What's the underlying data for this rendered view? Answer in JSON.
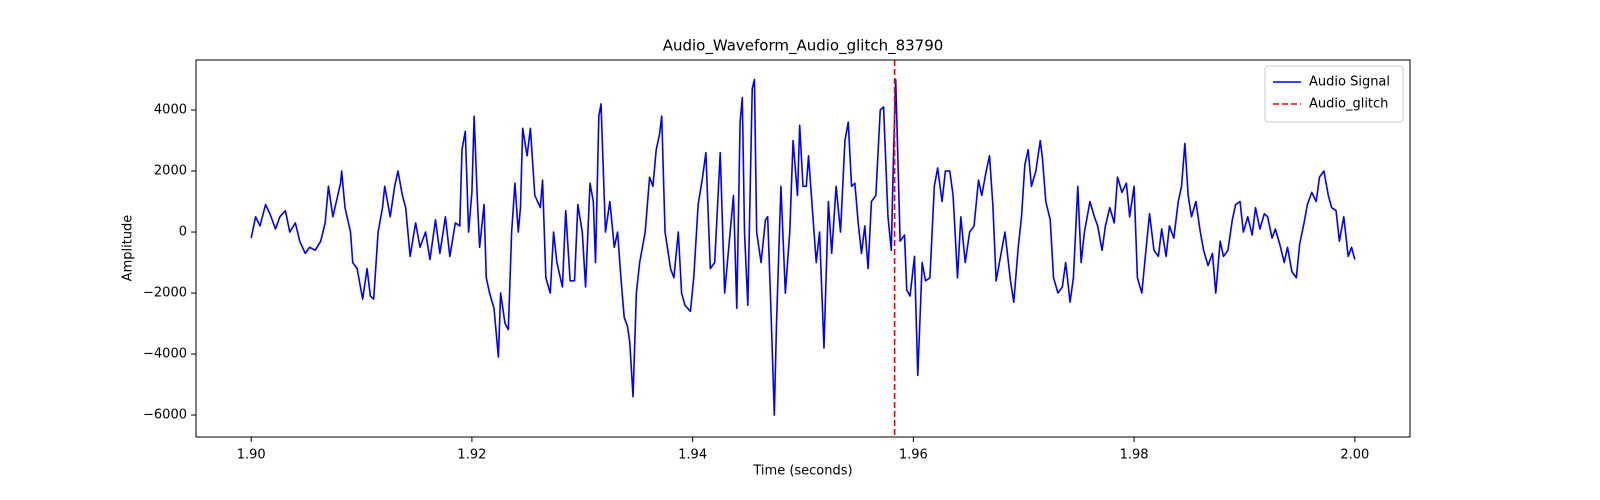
{
  "chart_data": {
    "type": "line",
    "title": "Audio_Waveform_Audio_glitch_83790",
    "x_label": "Time (seconds)",
    "y_label": "Amplitude",
    "x": [
      1.9,
      1.9004,
      1.9008,
      1.9013,
      1.9017,
      1.9022,
      1.9026,
      1.9031,
      1.9035,
      1.904,
      1.9044,
      1.9049,
      1.9053,
      1.9058,
      1.9063,
      1.9067,
      1.907,
      1.9074,
      1.9081,
      1.9082,
      1.9085,
      1.909,
      1.9092,
      1.9096,
      1.9101,
      1.9105,
      1.9108,
      1.9111,
      1.9115,
      1.9119,
      1.9121,
      1.9126,
      1.913,
      1.9133,
      1.9137,
      1.914,
      1.9144,
      1.9149,
      1.9153,
      1.9158,
      1.9162,
      1.9167,
      1.9171,
      1.9176,
      1.918,
      1.9185,
      1.9189,
      1.9191,
      1.9194,
      1.9197,
      1.92,
      1.9202,
      1.9205,
      1.9207,
      1.9211,
      1.9213,
      1.9216,
      1.922,
      1.9224,
      1.9226,
      1.923,
      1.9233,
      1.9236,
      1.9239,
      1.9242,
      1.9244,
      1.9246,
      1.925,
      1.9253,
      1.9257,
      1.9262,
      1.9264,
      1.9267,
      1.9271,
      1.9274,
      1.9277,
      1.9282,
      1.9285,
      1.9289,
      1.9293,
      1.9296,
      1.93,
      1.9303,
      1.9307,
      1.931,
      1.9312,
      1.9315,
      1.9317,
      1.9321,
      1.9325,
      1.9329,
      1.9332,
      1.9335,
      1.9338,
      1.9341,
      1.9343,
      1.9346,
      1.9349,
      1.9352,
      1.9357,
      1.9361,
      1.9364,
      1.9367,
      1.937,
      1.9372,
      1.9375,
      1.938,
      1.9383,
      1.9387,
      1.939,
      1.9393,
      1.9398,
      1.9401,
      1.9405,
      1.9409,
      1.9412,
      1.9416,
      1.942,
      1.9425,
      1.9429,
      1.9434,
      1.9437,
      1.944,
      1.9443,
      1.9445,
      1.9447,
      1.945,
      1.9454,
      1.9456,
      1.9458,
      1.9462,
      1.9466,
      1.9468,
      1.9471,
      1.9474,
      1.9476,
      1.948,
      1.9484,
      1.9488,
      1.9491,
      1.9495,
      1.9497,
      1.95,
      1.9503,
      1.9505,
      1.9508,
      1.9512,
      1.9515,
      1.9519,
      1.9523,
      1.9526,
      1.953,
      1.9534,
      1.9538,
      1.9541,
      1.9544,
      1.9547,
      1.955,
      1.9553,
      1.9556,
      1.9559,
      1.9562,
      1.9566,
      1.957,
      1.9573,
      1.9577,
      1.958,
      1.9582,
      1.9584,
      1.9588,
      1.9592,
      1.9594,
      1.9597,
      1.9601,
      1.9604,
      1.9608,
      1.9611,
      1.9615,
      1.9619,
      1.9622,
      1.9626,
      1.9629,
      1.9633,
      1.9636,
      1.964,
      1.9643,
      1.9647,
      1.9651,
      1.9655,
      1.9659,
      1.9662,
      1.9666,
      1.9669,
      1.9672,
      1.9675,
      1.9678,
      1.9683,
      1.9688,
      1.9691,
      1.9695,
      1.9698,
      1.9701,
      1.9704,
      1.9707,
      1.9711,
      1.9715,
      1.9717,
      1.972,
      1.9724,
      1.9727,
      1.9731,
      1.9735,
      1.9738,
      1.9742,
      1.9745,
      1.9749,
      1.9752,
      1.9755,
      1.976,
      1.9764,
      1.9767,
      1.9771,
      1.9774,
      1.9778,
      1.9782,
      1.9785,
      1.9789,
      1.9793,
      1.9796,
      1.98,
      1.9803,
      1.9807,
      1.9811,
      1.9814,
      1.9818,
      1.9822,
      1.9825,
      1.9829,
      1.9832,
      1.9836,
      1.984,
      1.9843,
      1.9846,
      1.9849,
      1.9852,
      1.9856,
      1.986,
      1.9863,
      1.9867,
      1.9871,
      1.9874,
      1.9878,
      1.9881,
      1.9885,
      1.9889,
      1.9892,
      1.9896,
      1.9899,
      1.9903,
      1.9907,
      1.991,
      1.9914,
      1.9918,
      1.9921,
      1.9925,
      1.9928,
      1.9932,
      1.9936,
      1.9939,
      1.9943,
      1.9947,
      1.995,
      1.9954,
      1.9957,
      1.9961,
      1.9965,
      1.9968,
      1.9972,
      1.9976,
      1.9979,
      1.9983,
      1.9986,
      1.999,
      1.9994,
      1.9997,
      2.0
    ],
    "series": [
      {
        "name": "Audio Signal",
        "color": "#0000ff",
        "values": [
          -200,
          500,
          200,
          900,
          600,
          100,
          500,
          700,
          0,
          300,
          -300,
          -700,
          -500,
          -600,
          -300,
          300,
          1500,
          500,
          1600,
          2000,
          800,
          0,
          -1000,
          -1200,
          -2200,
          -1200,
          -2100,
          -2200,
          0,
          800,
          1500,
          500,
          1500,
          2000,
          1200,
          800,
          -800,
          300,
          -500,
          0,
          -900,
          400,
          -700,
          500,
          -800,
          300,
          200,
          2700,
          3300,
          0,
          1300,
          3800,
          1000,
          -500,
          900,
          -1500,
          -2000,
          -2500,
          -4100,
          -2000,
          -3000,
          -3200,
          0,
          1600,
          0,
          800,
          3400,
          2500,
          3400,
          1200,
          800,
          1700,
          -1500,
          -2000,
          0,
          -1000,
          -1800,
          700,
          -1600,
          -1600,
          900,
          0,
          -1800,
          1600,
          1000,
          -1000,
          3800,
          4200,
          0,
          1000,
          -500,
          0,
          -1500,
          -2800,
          -3100,
          -3600,
          -5400,
          -2000,
          -1000,
          0,
          1800,
          1500,
          2700,
          3200,
          3800,
          0,
          -1200,
          -1500,
          0,
          -2000,
          -2400,
          -2600,
          -1500,
          900,
          1800,
          2600,
          -1200,
          -1000,
          2600,
          -2000,
          0,
          1200,
          -2500,
          3600,
          4400,
          0,
          -2400,
          4700,
          5000,
          0,
          -1000,
          400,
          500,
          -2600,
          -6000,
          -3000,
          1500,
          -2000,
          0,
          3000,
          1200,
          3500,
          1500,
          1500,
          2500,
          1000,
          -1000,
          0,
          -3800,
          1000,
          -700,
          1500,
          0,
          3000,
          3600,
          1500,
          1600,
          300,
          -700,
          200,
          -1200,
          1000,
          1200,
          4000,
          4100,
          500,
          -600,
          2500,
          5000,
          -300,
          -100,
          -1900,
          -2100,
          -800,
          -4700,
          -1000,
          -1600,
          -1500,
          1500,
          2100,
          1000,
          2000,
          2000,
          1200,
          -1500,
          500,
          -1000,
          0,
          200,
          1700,
          1200,
          2000,
          2500,
          900,
          -1600,
          -1000,
          0,
          -1600,
          -2300,
          -500,
          500,
          2200,
          2700,
          1500,
          2000,
          3000,
          2400,
          1000,
          400,
          -1500,
          -2000,
          -1800,
          -1000,
          -2300,
          -1500,
          1500,
          -1000,
          0,
          1000,
          500,
          200,
          -600,
          200,
          800,
          300,
          1800,
          1300,
          1600,
          500,
          1500,
          -1500,
          -2000,
          -500,
          600,
          -600,
          -800,
          100,
          -800,
          200,
          -200,
          1000,
          1500,
          2900,
          1200,
          500,
          1000,
          0,
          -600,
          -1100,
          -700,
          -2000,
          -300,
          -800,
          -600,
          400,
          900,
          1000,
          0,
          500,
          -100,
          800,
          100,
          600,
          500,
          -200,
          100,
          -400,
          -1000,
          -500,
          -1300,
          -1500,
          -400,
          300,
          900,
          1300,
          1000,
          1800,
          2000,
          1200,
          800,
          700,
          -300,
          500,
          -800,
          -500,
          -900
        ]
      }
    ],
    "markers": [
      {
        "name": "Audio_glitch",
        "x": 1.9583,
        "color": "#ff0000",
        "style": "dashed"
      }
    ],
    "xlim": [
      1.895,
      2.005
    ],
    "xticks": [
      {
        "value": 1.9,
        "label": "1.90"
      },
      {
        "value": 1.92,
        "label": "1.92"
      },
      {
        "value": 1.94,
        "label": "1.94"
      },
      {
        "value": 1.96,
        "label": "1.96"
      },
      {
        "value": 1.98,
        "label": "1.98"
      },
      {
        "value": 2.0,
        "label": "2.00"
      }
    ],
    "ylim": [
      -6720,
      5640
    ],
    "yticks": [
      {
        "value": -6000,
        "label": "−6000"
      },
      {
        "value": -4000,
        "label": "−4000"
      },
      {
        "value": -2000,
        "label": "−2000"
      },
      0,
      2000,
      4000
    ],
    "grid": false,
    "legend": "upper right"
  }
}
